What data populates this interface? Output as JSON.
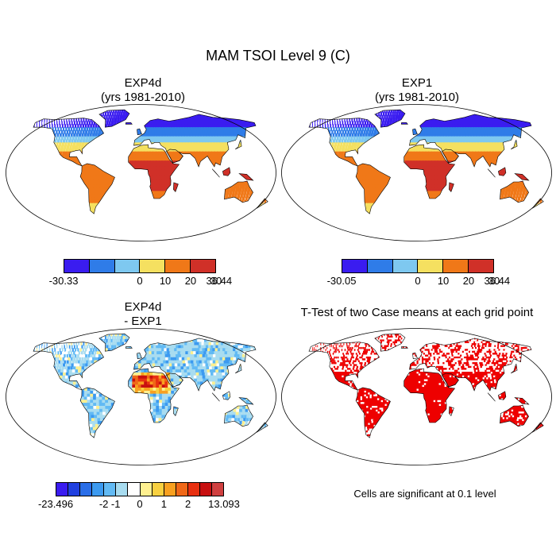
{
  "figure": {
    "title": "MAM TSOI Level 9 (C)"
  },
  "panels": [
    {
      "id": "exp4d",
      "title_line1": "EXP4d",
      "title_line2": "(yrs 1981-2010)",
      "colorbar": {
        "colors": [
          "#3a1cf0",
          "#2f7ce8",
          "#7ec8f0",
          "#f5e060",
          "#f07818",
          "#d03028"
        ],
        "tick_labels": [
          "-30.33",
          "0",
          "10",
          "20",
          "30",
          "36.44"
        ]
      }
    },
    {
      "id": "exp1",
      "title_line1": "EXP1",
      "title_line2": "(yrs 1981-2010)",
      "colorbar": {
        "colors": [
          "#3a1cf0",
          "#2f7ce8",
          "#7ec8f0",
          "#f5e060",
          "#f07818",
          "#d03028"
        ],
        "tick_labels": [
          "-30.05",
          "0",
          "10",
          "20",
          "30",
          "36.44"
        ]
      }
    },
    {
      "id": "diff",
      "title_line1": "EXP4d",
      "title_line2": "- EXP1",
      "colorbar": {
        "colors": [
          "#3a1cf0",
          "#2040e0",
          "#2a6ee8",
          "#3c9af0",
          "#62baf4",
          "#a8dcf0",
          "#ffffff",
          "#fff090",
          "#f8d040",
          "#f8a020",
          "#f06818",
          "#e83010",
          "#c81010",
          "#d04040"
        ],
        "tick_labels": [
          "-23.496",
          "-2",
          "-1",
          "0",
          "1",
          "2",
          "13.093"
        ]
      }
    },
    {
      "id": "ttest",
      "title_line1": "T-Test of two Case means at each grid point",
      "note": "Cells are significant at 0.1 level"
    }
  ]
}
